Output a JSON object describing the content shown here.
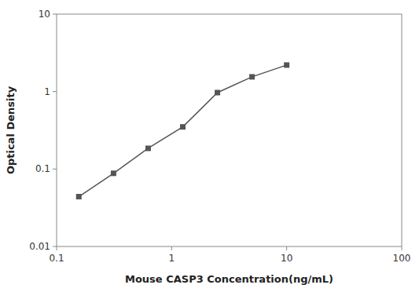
{
  "chart_data": {
    "type": "line",
    "x": [
      0.156,
      0.3125,
      0.625,
      1.25,
      2.5,
      5.0,
      10.0
    ],
    "values": [
      0.044,
      0.088,
      0.185,
      0.35,
      0.97,
      1.55,
      2.2
    ],
    "xlabel": "Mouse CASP3 Concentration(ng/mL)",
    "ylabel": "Optical Density",
    "xlim": [
      0.1,
      100
    ],
    "ylim": [
      0.01,
      10
    ],
    "xticks": [
      0.1,
      1,
      10,
      100
    ],
    "yticks": [
      0.01,
      0.1,
      1,
      10
    ],
    "log": true,
    "grid": false,
    "color": "#555555",
    "marker": "square"
  }
}
